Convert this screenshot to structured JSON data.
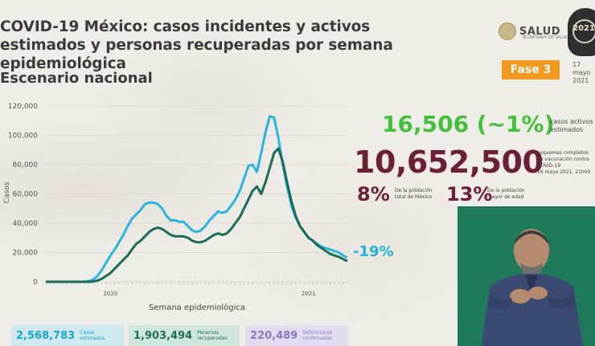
{
  "header": {
    "title": "COVID-19 México: casos incidentes y activos estimados y personas recuperadas por semana epidemiológica",
    "subtitle": "Escenario nacional",
    "logo_text": "SALUD",
    "logo_subtext": "SECRETARÍA DE SALUD",
    "emblem_year": "2021",
    "phase": "Fase 3",
    "date_line1": "17 mayo",
    "date_line2": "2021"
  },
  "colors": {
    "estimated": "#2bb5dd",
    "recovered": "#1a6b57",
    "active_green": "#45c03a",
    "vaccine": "#6b2035",
    "phase": "#f39a1e"
  },
  "stats": {
    "active_value": "16,506 (~1%)",
    "active_label_1": "casos activos",
    "active_label_2": "estimados",
    "vaccine_value": "10,652,500",
    "vaccine_label_1": "esquemas completos",
    "vaccine_label_2": "de vacunación contra",
    "vaccine_label_3": "COVID-19",
    "vaccine_label_4": "16 mayo 2021, 21h00",
    "pct_population": "8%",
    "pct_population_label_1": "De la población",
    "pct_population_label_2": "total de México",
    "pct_elderly": "13%",
    "pct_elderly_label_1": "De la población",
    "pct_elderly_label_2": "mayor de edad",
    "pct_change": "-19%"
  },
  "summary": {
    "estimated_value": "2,568,783",
    "estimated_label_1": "Casos",
    "estimated_label_2": "estimados",
    "recovered_value": "1,903,494",
    "recovered_label_1": "Personas",
    "recovered_label_2": "recuperadas",
    "deaths_value": "220,489",
    "deaths_label_1": "Defunciones",
    "deaths_label_2": "confirmadas"
  },
  "chart_data": {
    "type": "line",
    "xlabel": "Semana epidemiológica",
    "ylabel": "Casos",
    "ylim": [
      0,
      120000
    ],
    "yticks": [
      "0",
      "20,000",
      "40,000",
      "60,000",
      "80,000",
      "100,000",
      "120,000"
    ],
    "year_labels": [
      "2020",
      "2021"
    ],
    "year_label_weeks": [
      15,
      61
    ],
    "x_weeks": 71,
    "series": [
      {
        "values": [
          0,
          0,
          0,
          0,
          0,
          0,
          0,
          0,
          0,
          100,
          500,
          1500,
          4000,
          8000,
          13000,
          18000,
          22000,
          27000,
          32000,
          38000,
          43000,
          46000,
          49000,
          53000,
          54000,
          54000,
          53000,
          50000,
          45000,
          42000,
          42000,
          41000,
          41000,
          38000,
          35000,
          34000,
          35000,
          38000,
          42000,
          45000,
          48000,
          47000,
          48000,
          52000,
          56000,
          62000,
          70000,
          79000,
          80000,
          75000,
          88000,
          102000,
          113000,
          112000,
          98000,
          80000,
          65000,
          52000,
          44000,
          38000,
          34000,
          30000,
          28000,
          26000,
          24000,
          23000,
          22000,
          21000,
          20000,
          18000,
          16500
        ]
      },
      {
        "values": [
          0,
          0,
          0,
          0,
          0,
          0,
          0,
          0,
          0,
          0,
          0,
          200,
          800,
          2000,
          4000,
          6000,
          9000,
          12000,
          15000,
          18000,
          22000,
          26000,
          28000,
          31000,
          34000,
          36000,
          37000,
          36000,
          34000,
          32000,
          31000,
          31000,
          31000,
          30000,
          28000,
          27000,
          27000,
          28000,
          30000,
          32000,
          33000,
          32000,
          33000,
          36000,
          40000,
          44000,
          50000,
          56000,
          62000,
          65000,
          60000,
          68000,
          78000,
          88000,
          91000,
          82000,
          68000,
          55000,
          45000,
          38000,
          34000,
          30000,
          28000,
          25000,
          23000,
          21000,
          19000,
          18000,
          17000,
          15500,
          14000
        ]
      }
    ]
  }
}
